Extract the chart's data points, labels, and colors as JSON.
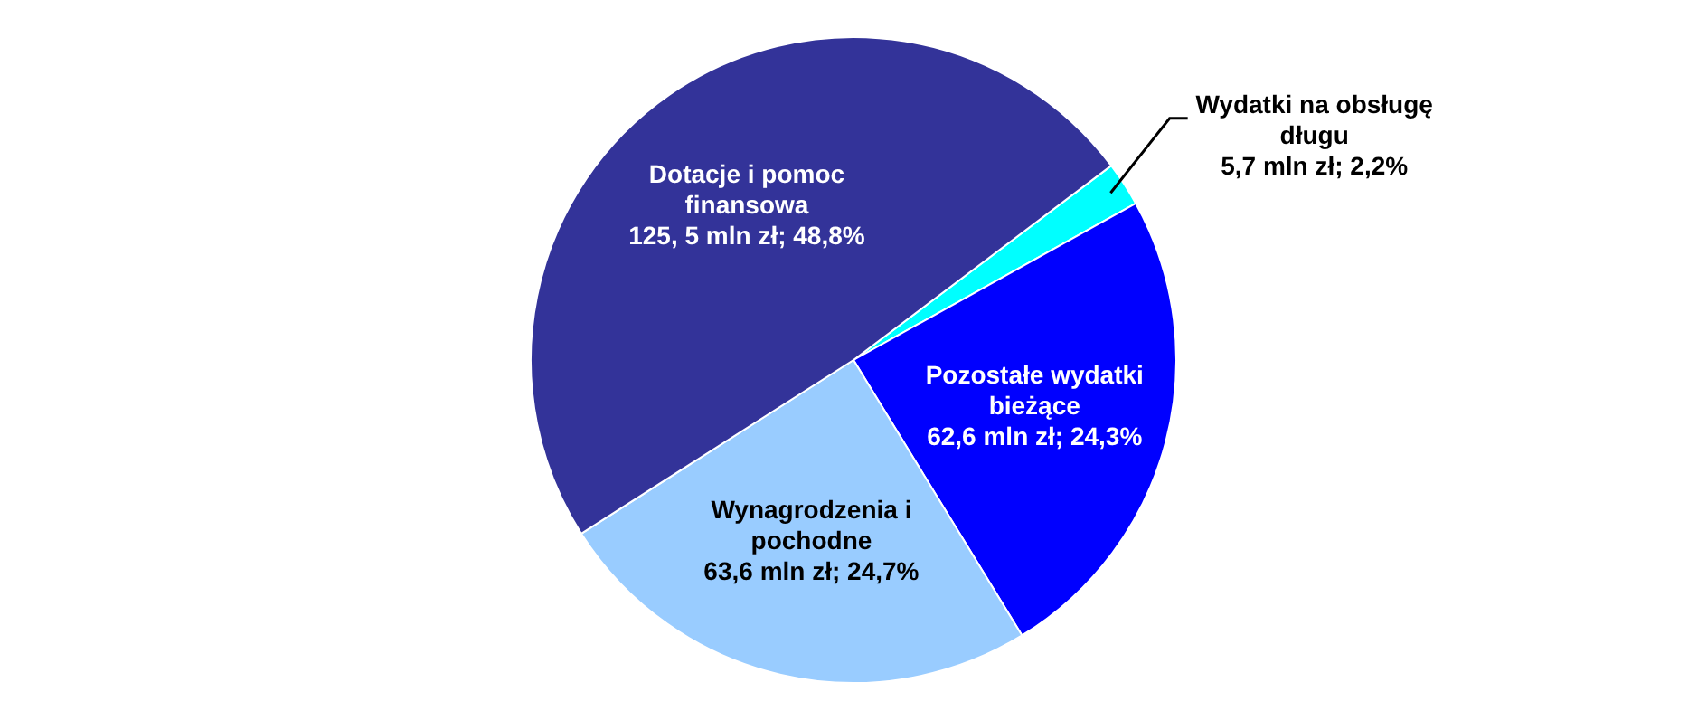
{
  "chart_data": {
    "type": "pie",
    "categories": [
      "Wydatki na obsługę długu",
      "Pozostałe wydatki bieżące",
      "Wynagrodzenia i pochodne",
      "Dotacje i pomoc finansowa"
    ],
    "values": [
      5.7,
      62.6,
      63.6,
      125.5
    ],
    "value_labels": [
      "5,7 mln zł; 2,2%",
      "62,6 mln zł; 24,3%",
      "63,6 mln zł; 24,7%",
      "125, 5 mln zł; 48,8%"
    ],
    "colors": [
      "#00ffff",
      "#0000ff",
      "#99ccff",
      "#333399"
    ],
    "legend": false
  }
}
